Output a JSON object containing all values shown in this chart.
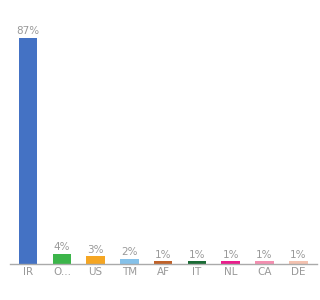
{
  "categories": [
    "IR",
    "O...",
    "US",
    "TM",
    "AF",
    "IT",
    "NL",
    "CA",
    "DE"
  ],
  "values": [
    87,
    4,
    3,
    2,
    1,
    1,
    1,
    1,
    1
  ],
  "bar_colors": [
    "#4472c4",
    "#3cb54a",
    "#f5a623",
    "#85c1e9",
    "#c0622a",
    "#1a6b35",
    "#e91e8c",
    "#f48fb1",
    "#f4c2b0"
  ],
  "labels": [
    "87%",
    "4%",
    "3%",
    "2%",
    "1%",
    "1%",
    "1%",
    "1%",
    "1%"
  ],
  "ylim": [
    0,
    98
  ],
  "background_color": "#ffffff",
  "label_color": "#999999",
  "label_fontsize": 7.5,
  "tick_fontsize": 7.5,
  "bar_width": 0.55
}
